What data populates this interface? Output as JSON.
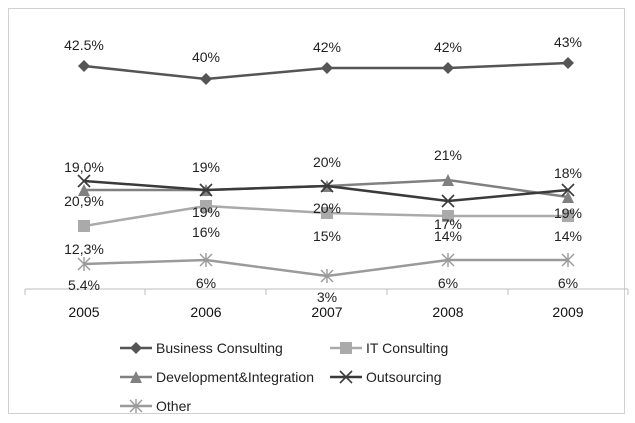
{
  "chart_data": {
    "type": "line",
    "title": "",
    "xlabel": "",
    "ylabel": "",
    "categories": [
      "2005",
      "2006",
      "2007",
      "2008",
      "2009"
    ],
    "ylim": [
      0,
      50
    ],
    "grid": false,
    "legend_position": "bottom",
    "series": [
      {
        "name": "Business Consulting",
        "values": [
          42.5,
          40,
          42,
          42,
          43
        ],
        "labels": [
          "42.5%",
          "40%",
          "42%",
          "42%",
          "43%"
        ],
        "color": "#555555",
        "marker": "diamond"
      },
      {
        "name": "IT Consulting",
        "values": [
          12.3,
          16,
          15,
          14,
          14
        ],
        "labels": [
          "12,3%",
          "16%",
          "15%",
          "14%",
          "14%"
        ],
        "color": "#aaaaaa",
        "marker": "square"
      },
      {
        "name": "Development&Integration",
        "values": [
          19.0,
          19,
          20,
          21,
          18
        ],
        "labels": [
          "19,0%",
          "19%",
          "20%",
          "21%",
          "18%"
        ],
        "color": "#808080",
        "marker": "triangle"
      },
      {
        "name": "Outsourcing",
        "values": [
          20.9,
          19,
          20,
          17,
          19
        ],
        "labels": [
          "20,9%",
          "19%",
          "20%",
          "17%",
          "19%"
        ],
        "color": "#3a3a3a",
        "marker": "x"
      },
      {
        "name": "Other",
        "values": [
          5.4,
          6,
          3,
          6,
          6
        ],
        "labels": [
          "5.4%",
          "6%",
          "3%",
          "6%",
          "6%"
        ],
        "color": "#9a9a9a",
        "marker": "asterisk"
      }
    ]
  }
}
